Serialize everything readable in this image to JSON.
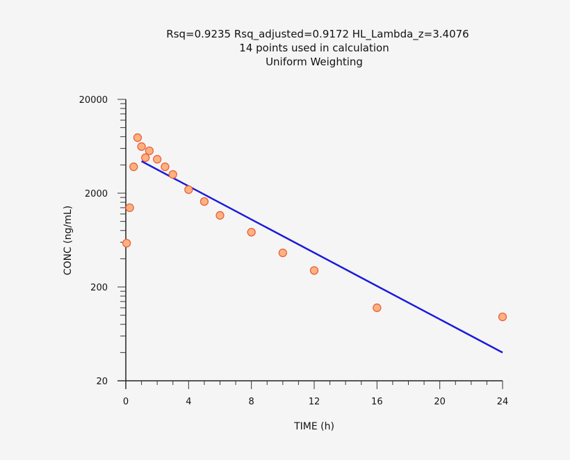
{
  "chart_data": {
    "type": "scatter",
    "title_lines": [
      "Rsq=0.9235  Rsq_adjusted=0.9172  HL_Lambda_z=3.4076",
      "14 points used in calculation",
      "Uniform Weighting"
    ],
    "xlabel": "TIME (h)",
    "ylabel": "CONC (ng/mL)",
    "xlim": [
      0,
      24
    ],
    "ylim": [
      20,
      20000
    ],
    "yscale": "log",
    "xticks": [
      "0",
      "4",
      "8",
      "12",
      "16",
      "20",
      "24"
    ],
    "yticks": [
      "20",
      "200",
      "2000",
      "20000"
    ],
    "grid": false,
    "observed": {
      "x": [
        0.05,
        0.25,
        0.5,
        0.75,
        1,
        1.25,
        1.5,
        2,
        2.5,
        3,
        4,
        5,
        6,
        8,
        10,
        12,
        16,
        24
      ],
      "y": [
        586,
        1400,
        3820,
        7820,
        6280,
        4780,
        5660,
        4600,
        3820,
        3170,
        2180,
        1630,
        1160,
        768,
        462,
        300,
        120,
        96
      ],
      "marker_fill": "#ffb27f",
      "marker_edge": "#e8603c"
    },
    "fit_line": {
      "x": [
        1,
        24
      ],
      "y": [
        4380,
        40
      ],
      "color": "#1a1adc"
    }
  }
}
